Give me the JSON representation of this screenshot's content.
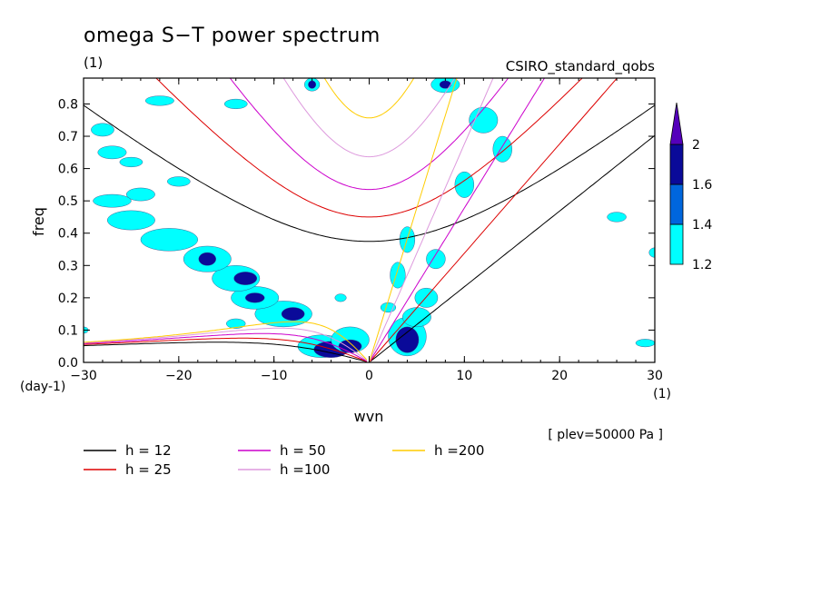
{
  "chart_data": {
    "type": "contour",
    "title": "omega S−T power spectrum",
    "subtitle_left": "(1)",
    "subtitle_right": "CSIRO_standard_qobs",
    "xlabel": "wvn",
    "ylabel": "freq",
    "x_unit": "(1)",
    "y_unit": "(day-1)",
    "xlim": [
      -30,
      30
    ],
    "ylim": [
      0,
      0.88
    ],
    "x_ticks": [
      "−30",
      "−20",
      "−10",
      "0",
      "10",
      "20",
      "30"
    ],
    "x_tick_values": [
      -30,
      -20,
      -10,
      0,
      10,
      20,
      30
    ],
    "y_ticks": [
      "0.0",
      "0.1",
      "0.2",
      "0.3",
      "0.4",
      "0.5",
      "0.6",
      "0.7",
      "0.8"
    ],
    "y_tick_values": [
      0,
      0.1,
      0.2,
      0.3,
      0.4,
      0.5,
      0.6,
      0.7,
      0.8
    ],
    "annotation": "[ plev=50000 Pa ]",
    "colorbar": {
      "levels": [
        1.2,
        1.4,
        1.6,
        2
      ],
      "labels": [
        "1.2",
        "1.4",
        "1.6",
        "2"
      ],
      "colors": [
        "#00ffff",
        "#0066dd",
        "#0a0a99",
        "#5500bb"
      ]
    },
    "dispersion_curves": [
      {
        "label": "h = 12",
        "h": 12,
        "color": "#000000"
      },
      {
        "label": "h = 25",
        "h": 25,
        "color": "#dd0000"
      },
      {
        "label": "h = 50",
        "h": 50,
        "color": "#cc00cc"
      },
      {
        "label": "h =100",
        "h": 100,
        "color": "#dd99dd"
      },
      {
        "label": "h =200",
        "h": 200,
        "color": "#ffcc00"
      }
    ],
    "contour_regions": [
      {
        "level": 1.2,
        "x": -5,
        "y": 0.05,
        "rx": 2.5,
        "ry": 0.035
      },
      {
        "level": 1.6,
        "x": -4,
        "y": 0.04,
        "rx": 1.8,
        "ry": 0.025
      },
      {
        "level": 1.2,
        "x": -2,
        "y": 0.07,
        "rx": 2,
        "ry": 0.04
      },
      {
        "level": 1.6,
        "x": -2,
        "y": 0.05,
        "rx": 1.2,
        "ry": 0.02
      },
      {
        "level": 1.2,
        "x": 4,
        "y": 0.08,
        "rx": 2,
        "ry": 0.06
      },
      {
        "level": 1.6,
        "x": 4,
        "y": 0.07,
        "rx": 1.2,
        "ry": 0.04
      },
      {
        "level": 1.2,
        "x": 5,
        "y": 0.14,
        "rx": 1.5,
        "ry": 0.03
      },
      {
        "level": 1.2,
        "x": 6,
        "y": 0.2,
        "rx": 1.2,
        "ry": 0.03
      },
      {
        "level": 1.2,
        "x": 2,
        "y": 0.17,
        "rx": 0.8,
        "ry": 0.015
      },
      {
        "level": 1.2,
        "x": 3,
        "y": 0.27,
        "rx": 0.8,
        "ry": 0.04
      },
      {
        "level": 1.2,
        "x": 4,
        "y": 0.38,
        "rx": 0.8,
        "ry": 0.04
      },
      {
        "level": 1.2,
        "x": 7,
        "y": 0.32,
        "rx": 1,
        "ry": 0.03
      },
      {
        "level": 1.2,
        "x": -9,
        "y": 0.15,
        "rx": 3,
        "ry": 0.04
      },
      {
        "level": 1.6,
        "x": -8,
        "y": 0.15,
        "rx": 1.2,
        "ry": 0.02
      },
      {
        "level": 1.2,
        "x": -12,
        "y": 0.2,
        "rx": 2.5,
        "ry": 0.035
      },
      {
        "level": 1.6,
        "x": -12,
        "y": 0.2,
        "rx": 1,
        "ry": 0.015
      },
      {
        "level": 1.2,
        "x": -14,
        "y": 0.26,
        "rx": 2.5,
        "ry": 0.04
      },
      {
        "level": 1.6,
        "x": -13,
        "y": 0.26,
        "rx": 1.2,
        "ry": 0.02
      },
      {
        "level": 1.2,
        "x": -17,
        "y": 0.32,
        "rx": 2.5,
        "ry": 0.04
      },
      {
        "level": 1.6,
        "x": -17,
        "y": 0.32,
        "rx": 0.9,
        "ry": 0.02
      },
      {
        "level": 1.2,
        "x": -21,
        "y": 0.38,
        "rx": 3,
        "ry": 0.035
      },
      {
        "level": 1.2,
        "x": -25,
        "y": 0.44,
        "rx": 2.5,
        "ry": 0.03
      },
      {
        "level": 1.2,
        "x": -24,
        "y": 0.52,
        "rx": 1.5,
        "ry": 0.02
      },
      {
        "level": 1.2,
        "x": -27,
        "y": 0.5,
        "rx": 2,
        "ry": 0.02
      },
      {
        "level": 1.2,
        "x": -27,
        "y": 0.65,
        "rx": 1.5,
        "ry": 0.02
      },
      {
        "level": 1.2,
        "x": -25,
        "y": 0.62,
        "rx": 1.2,
        "ry": 0.015
      },
      {
        "level": 1.2,
        "x": -28,
        "y": 0.72,
        "rx": 1.2,
        "ry": 0.02
      },
      {
        "level": 1.2,
        "x": -20,
        "y": 0.56,
        "rx": 1.2,
        "ry": 0.015
      },
      {
        "level": 1.2,
        "x": -22,
        "y": 0.81,
        "rx": 1.5,
        "ry": 0.015
      },
      {
        "level": 1.2,
        "x": -14,
        "y": 0.8,
        "rx": 1.2,
        "ry": 0.015
      },
      {
        "level": 1.2,
        "x": -6,
        "y": 0.86,
        "rx": 0.8,
        "ry": 0.02
      },
      {
        "level": 1.6,
        "x": -6,
        "y": 0.86,
        "rx": 0.4,
        "ry": 0.012
      },
      {
        "level": 1.2,
        "x": 8,
        "y": 0.86,
        "rx": 1.5,
        "ry": 0.025
      },
      {
        "level": 1.6,
        "x": 8,
        "y": 0.86,
        "rx": 0.6,
        "ry": 0.012
      },
      {
        "level": 1.2,
        "x": 12,
        "y": 0.75,
        "rx": 1.5,
        "ry": 0.04
      },
      {
        "level": 1.2,
        "x": 14,
        "y": 0.66,
        "rx": 1,
        "ry": 0.04
      },
      {
        "level": 1.2,
        "x": 10,
        "y": 0.55,
        "rx": 1,
        "ry": 0.04
      },
      {
        "level": 1.2,
        "x": 26,
        "y": 0.45,
        "rx": 1,
        "ry": 0.015
      },
      {
        "level": 1.2,
        "x": 30,
        "y": 0.34,
        "rx": 0.6,
        "ry": 0.015
      },
      {
        "level": 1.2,
        "x": 29,
        "y": 0.06,
        "rx": 1,
        "ry": 0.012
      },
      {
        "level": 1.2,
        "x": -30,
        "y": 0.1,
        "rx": 0.5,
        "ry": 0.01
      },
      {
        "level": 1.2,
        "x": -3,
        "y": 0.2,
        "rx": 0.6,
        "ry": 0.012
      },
      {
        "level": 1.2,
        "x": -14,
        "y": 0.12,
        "rx": 1,
        "ry": 0.015
      }
    ]
  }
}
